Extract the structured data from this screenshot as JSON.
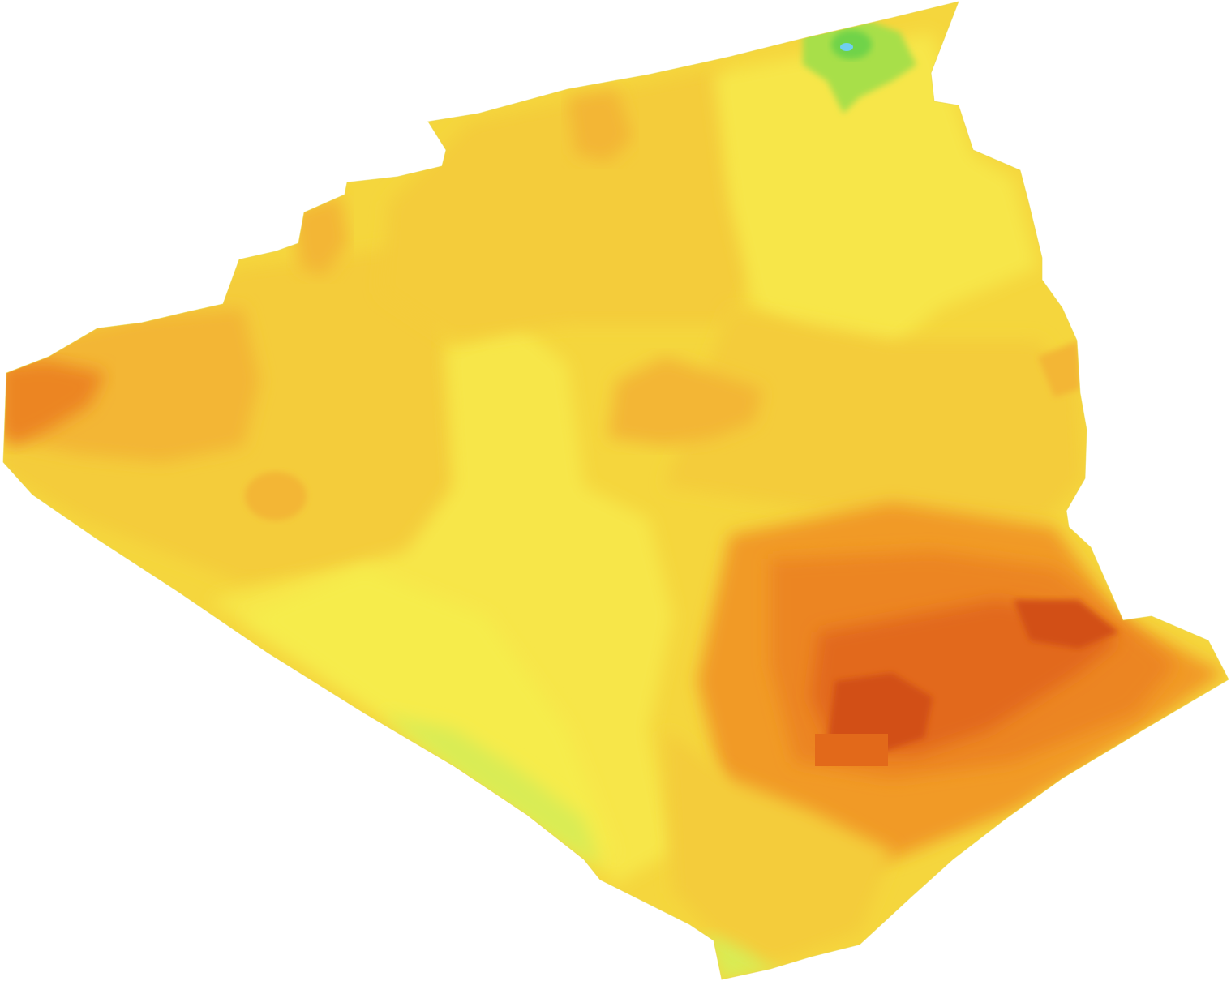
{
  "map": {
    "background_color": "#ffffff",
    "palette": {
      "green_dark": "#6fd34a",
      "green": "#a8df4a",
      "yellow_green": "#d9ec55",
      "yellow_light": "#f6ec4b",
      "yellow": "#f7e64a",
      "yellow_gold": "#f5d63d",
      "gold": "#f4cc3a",
      "orange_light": "#f3b634",
      "orange": "#f19a28",
      "orange_dark": "#ec8520",
      "red_orange": "#e2691a",
      "red": "#d24f12",
      "water": "#6fcff2"
    }
  }
}
